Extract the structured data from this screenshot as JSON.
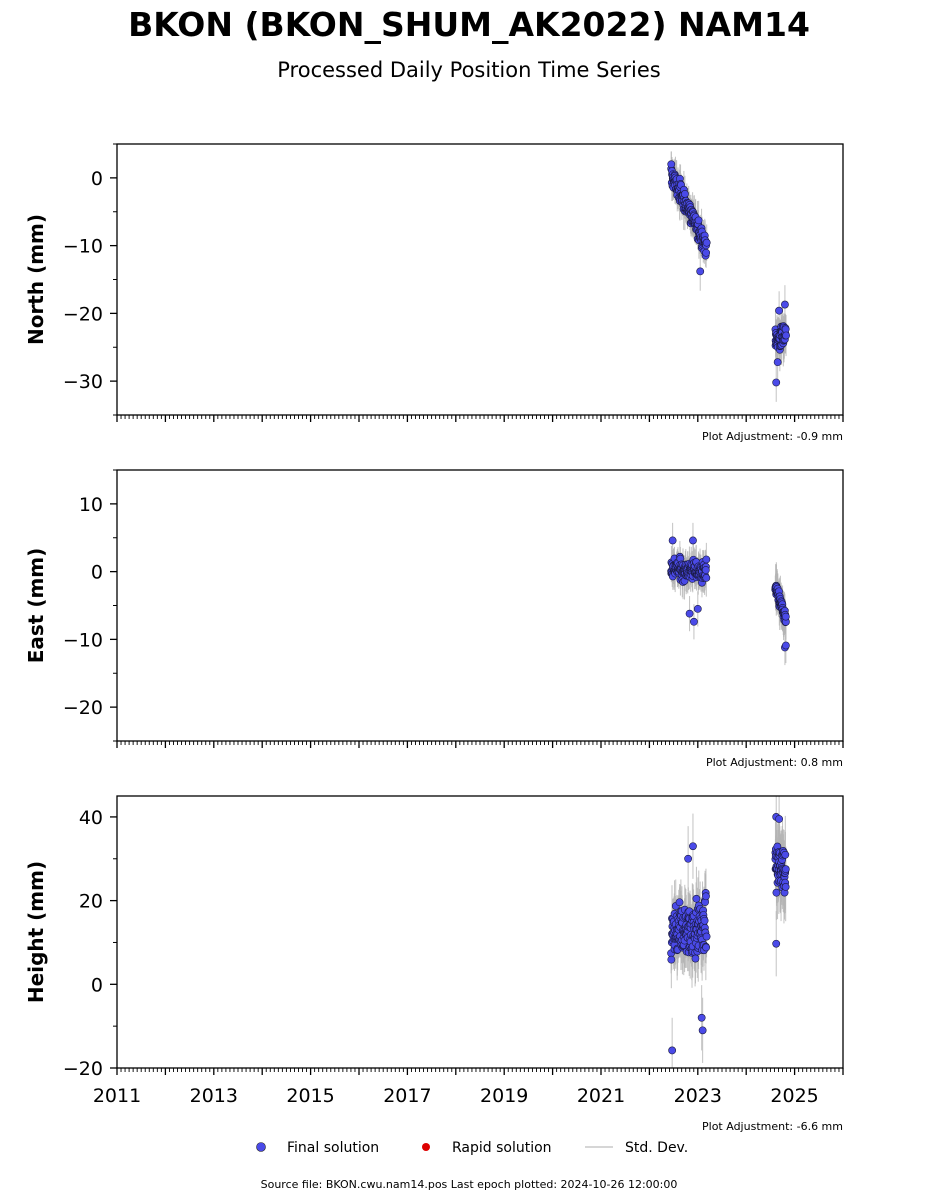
{
  "chart_data": {
    "type": "scatter",
    "title": "BKON (BKON_SHUM_AK2022) NAM14",
    "subtitle": "Processed Daily Position Time Series",
    "xlim": [
      2011,
      2026
    ],
    "x_ticks": [
      "2011",
      "2013",
      "2015",
      "2017",
      "2019",
      "2021",
      "2023",
      "2025"
    ],
    "panels": [
      {
        "ylabel": "North (mm)",
        "ylim": [
          -35,
          5
        ],
        "y_ticks": [
          "0",
          "−10",
          "−20",
          "−30"
        ],
        "y_tick_values": [
          0,
          -10,
          -20,
          -30
        ],
        "adjustment": "Plot Adjustment: -0.9 mm",
        "segments": [
          {
            "x0": 2022.45,
            "x1": 2023.18,
            "y0": 0.5,
            "y1": -10.0,
            "noise": 1.6,
            "count": 150,
            "err": 2.2
          },
          {
            "x0": 2024.6,
            "x1": 2024.82,
            "y0": -24.0,
            "y1": -23.0,
            "noise": 1.6,
            "count": 55,
            "err": 2.5
          }
        ],
        "outliers": [
          [
            2023.05,
            -13.8
          ],
          [
            2024.62,
            -30.2
          ],
          [
            2024.65,
            -27.2
          ],
          [
            2024.8,
            -18.7
          ],
          [
            2024.68,
            -19.6
          ]
        ]
      },
      {
        "ylabel": "East (mm)",
        "ylim": [
          -25,
          15
        ],
        "y_ticks": [
          "10",
          "0",
          "−10",
          "−20"
        ],
        "y_tick_values": [
          10,
          0,
          -10,
          -20
        ],
        "adjustment": "Plot Adjustment: 0.8 mm",
        "segments": [
          {
            "x0": 2022.45,
            "x1": 2023.18,
            "y0": 0.5,
            "y1": 0.0,
            "noise": 1.5,
            "count": 150,
            "err": 2.0
          },
          {
            "x0": 2024.6,
            "x1": 2024.82,
            "y0": -2.0,
            "y1": -7.5,
            "noise": 1.0,
            "count": 60,
            "err": 2.5
          }
        ],
        "outliers": [
          [
            2022.48,
            4.6
          ],
          [
            2022.9,
            4.6
          ],
          [
            2022.83,
            -6.2
          ],
          [
            2022.92,
            -7.4
          ],
          [
            2023.0,
            -5.5
          ],
          [
            2024.8,
            -11.2
          ],
          [
            2024.82,
            -10.9
          ]
        ]
      },
      {
        "ylabel": "Height (mm)",
        "ylim": [
          -20,
          45
        ],
        "y_ticks": [
          "40",
          "20",
          "0",
          "−20"
        ],
        "y_tick_values": [
          40,
          20,
          0,
          -20
        ],
        "adjustment": "Plot Adjustment: -6.6 mm",
        "segments": [
          {
            "x0": 2022.45,
            "x1": 2023.18,
            "y0": 12.0,
            "y1": 14.0,
            "noise": 6.5,
            "count": 170,
            "err": 6.0
          },
          {
            "x0": 2024.6,
            "x1": 2024.82,
            "y0": 28.0,
            "y1": 28.0,
            "noise": 5.5,
            "count": 60,
            "err": 7.0
          }
        ],
        "outliers": [
          [
            2022.47,
            -15.8
          ],
          [
            2022.9,
            33.0
          ],
          [
            2023.1,
            -11.0
          ],
          [
            2023.08,
            -8.0
          ],
          [
            2024.62,
            9.7
          ],
          [
            2024.62,
            40.0
          ],
          [
            2024.68,
            39.5
          ],
          [
            2022.8,
            30.0
          ]
        ]
      }
    ],
    "legend": [
      {
        "label": "Final solution",
        "color": "#4a4ae8"
      },
      {
        "label": "Rapid solution",
        "color": "#dd0000"
      },
      {
        "label": "Std. Dev.",
        "color": "#c8c8c8"
      }
    ],
    "legend_placement": "bottom-center",
    "footer": "Source file: BKON.cwu.nam14.pos  Last epoch plotted: 2024-10-26 12:00:00",
    "grid": false
  }
}
